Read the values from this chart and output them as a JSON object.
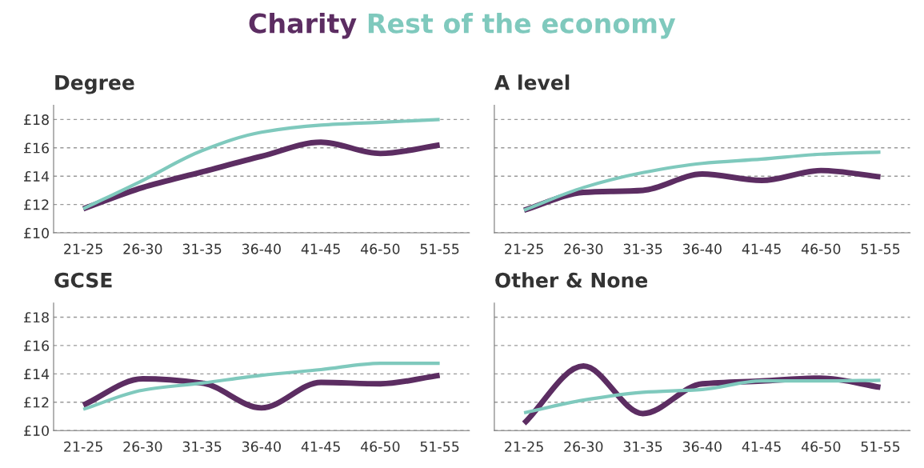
{
  "chart_data": [
    {
      "type": "line",
      "title": "Degree",
      "categories": [
        "21-25",
        "26-30",
        "31-35",
        "36-40",
        "41-45",
        "46-50",
        "51-55"
      ],
      "series": [
        {
          "name": "Charity",
          "color": "#5c2d62",
          "values": [
            11.7,
            13.2,
            14.3,
            15.4,
            16.4,
            15.6,
            16.2
          ]
        },
        {
          "name": "Rest of the economy",
          "color": "#7fc9bd",
          "values": [
            11.7,
            13.7,
            15.8,
            17.1,
            17.6,
            17.8,
            18.0
          ]
        }
      ],
      "ylim": [
        10,
        19
      ],
      "yticks": [
        {
          "value": 10,
          "label": "£10"
        },
        {
          "value": 12,
          "label": "£12"
        },
        {
          "value": 14,
          "label": "£14"
        },
        {
          "value": 16,
          "label": "£16"
        },
        {
          "value": 18,
          "label": "£18"
        }
      ],
      "grid": "y",
      "legend": "top",
      "marker": "none",
      "line_style": "solid"
    },
    {
      "type": "line",
      "title": "A level",
      "categories": [
        "21-25",
        "26-30",
        "31-35",
        "36-40",
        "41-45",
        "46-50",
        "51-55"
      ],
      "series": [
        {
          "color": "#5c2d62",
          "values": [
            11.6,
            12.85,
            13.0,
            14.15,
            13.7,
            14.4,
            13.95
          ]
        },
        {
          "color": "#7fc9bd",
          "values": [
            11.6,
            13.2,
            14.25,
            14.9,
            15.2,
            15.55,
            15.7
          ]
        }
      ],
      "ylim": [
        10,
        19
      ],
      "yticks": [
        {
          "value": 10,
          "label": null
        },
        {
          "value": 12,
          "label": null
        },
        {
          "value": 14,
          "label": null
        },
        {
          "value": 16,
          "label": null
        },
        {
          "value": 18,
          "label": null
        }
      ],
      "grid": "y",
      "tick_labels": "x",
      "marker": "none",
      "line_style": "solid"
    },
    {
      "type": "line",
      "title": "GCSE",
      "categories": [
        "21-25",
        "26-30",
        "31-35",
        "36-40",
        "41-45",
        "46-50",
        "51-55"
      ],
      "series": [
        {
          "color": "#5c2d62",
          "values": [
            11.8,
            13.65,
            13.35,
            11.6,
            13.4,
            13.3,
            13.9
          ]
        },
        {
          "color": "#7fc9bd",
          "values": [
            11.5,
            12.85,
            13.35,
            13.9,
            14.3,
            14.75,
            14.75
          ]
        }
      ],
      "ylim": [
        10,
        19
      ],
      "yticks": [
        {
          "value": 10,
          "label": "£10"
        },
        {
          "value": 12,
          "label": "£12"
        },
        {
          "value": 14,
          "label": "£14"
        },
        {
          "value": 16,
          "label": "£16"
        },
        {
          "value": 18,
          "label": "£18"
        }
      ],
      "grid": "y",
      "marker": "none",
      "line_style": "solid"
    },
    {
      "type": "line",
      "title": "Other & None",
      "categories": [
        "21-25",
        "26-30",
        "31-35",
        "36-40",
        "41-45",
        "46-50",
        "51-55"
      ],
      "series": [
        {
          "color": "#5c2d62",
          "values": [
            10.5,
            14.55,
            11.2,
            13.3,
            13.5,
            13.7,
            13.05
          ]
        },
        {
          "color": "#7fc9bd",
          "values": [
            11.25,
            12.15,
            12.7,
            12.9,
            13.5,
            13.5,
            13.55
          ]
        }
      ],
      "ylim": [
        10,
        19
      ],
      "yticks": [
        {
          "value": 10,
          "label": null
        },
        {
          "value": 12,
          "label": null
        },
        {
          "value": 14,
          "label": null
        },
        {
          "value": 16,
          "label": null
        },
        {
          "value": 18,
          "label": null
        }
      ],
      "grid": "y",
      "tick_labels": "x",
      "marker": "none",
      "line_style": "solid"
    }
  ]
}
